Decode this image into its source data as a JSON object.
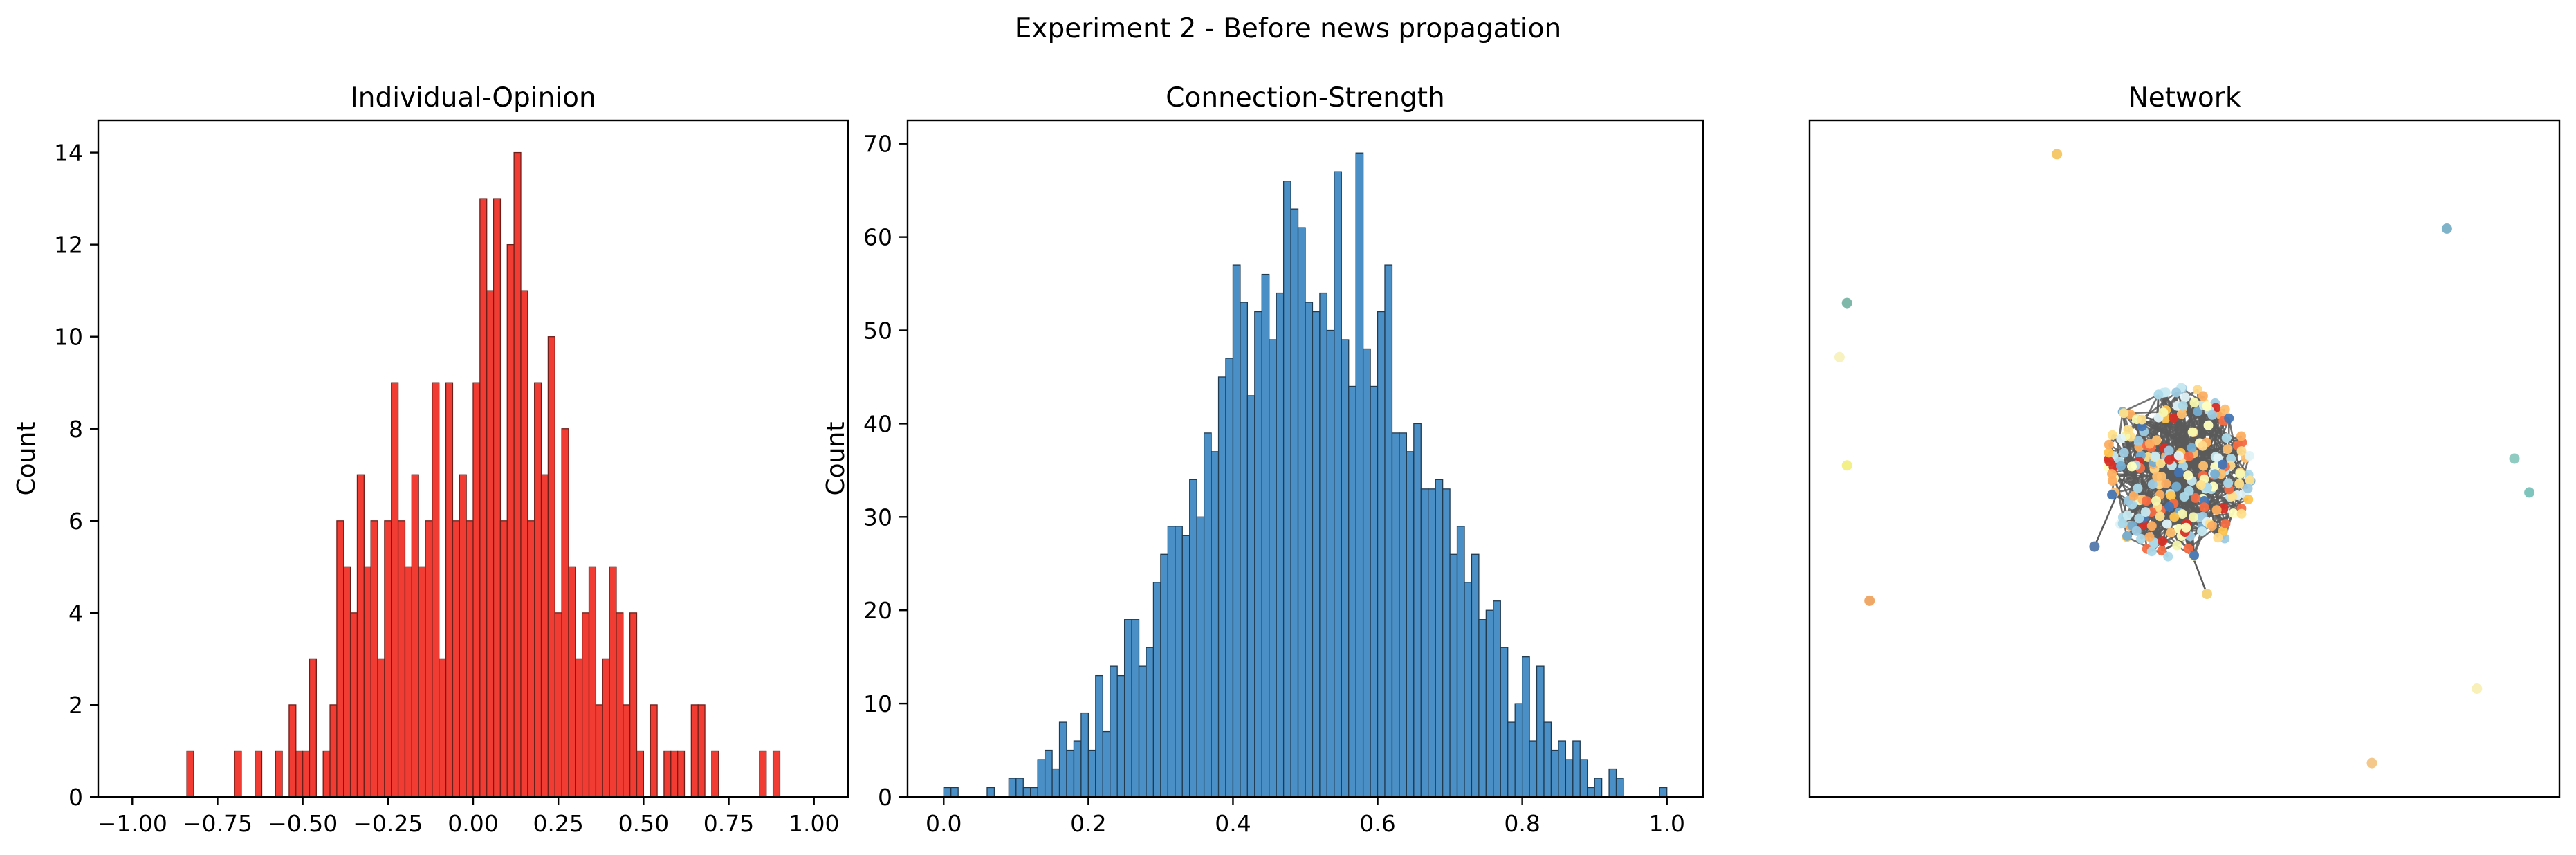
{
  "suptitle": "Experiment 2 - Before news propagation",
  "chart_data": [
    {
      "type": "bar",
      "title": "Individual-Opinion",
      "xlabel": "",
      "ylabel": "Count",
      "xlim": [
        -1.1,
        1.1
      ],
      "ylim": [
        0,
        14.7
      ],
      "bin_width": 0.02,
      "bar_color": "#f03c32",
      "edge_color": "#6e1e19",
      "xticks": [
        -1.0,
        -0.75,
        -0.5,
        -0.25,
        0.0,
        0.25,
        0.5,
        0.75,
        1.0
      ],
      "xtick_labels": [
        "−1.00",
        "−0.75",
        "−0.50",
        "−0.25",
        "0.00",
        "0.25",
        "0.50",
        "0.75",
        "1.00"
      ],
      "yticks": [
        0,
        2,
        4,
        6,
        8,
        10,
        12,
        14
      ],
      "ytick_labels": [
        "0",
        "2",
        "4",
        "6",
        "8",
        "10",
        "12",
        "14"
      ],
      "bars": [
        {
          "x": -0.84,
          "y": 1
        },
        {
          "x": -0.7,
          "y": 1
        },
        {
          "x": -0.64,
          "y": 1
        },
        {
          "x": -0.58,
          "y": 1
        },
        {
          "x": -0.54,
          "y": 2
        },
        {
          "x": -0.52,
          "y": 1
        },
        {
          "x": -0.5,
          "y": 1
        },
        {
          "x": -0.48,
          "y": 3
        },
        {
          "x": -0.44,
          "y": 1
        },
        {
          "x": -0.42,
          "y": 2
        },
        {
          "x": -0.4,
          "y": 6
        },
        {
          "x": -0.38,
          "y": 5
        },
        {
          "x": -0.36,
          "y": 4
        },
        {
          "x": -0.34,
          "y": 7
        },
        {
          "x": -0.32,
          "y": 5
        },
        {
          "x": -0.3,
          "y": 6
        },
        {
          "x": -0.28,
          "y": 3
        },
        {
          "x": -0.26,
          "y": 6
        },
        {
          "x": -0.24,
          "y": 9
        },
        {
          "x": -0.22,
          "y": 6
        },
        {
          "x": -0.2,
          "y": 5
        },
        {
          "x": -0.18,
          "y": 7
        },
        {
          "x": -0.16,
          "y": 5
        },
        {
          "x": -0.14,
          "y": 6
        },
        {
          "x": -0.12,
          "y": 9
        },
        {
          "x": -0.1,
          "y": 3
        },
        {
          "x": -0.08,
          "y": 9
        },
        {
          "x": -0.06,
          "y": 6
        },
        {
          "x": -0.04,
          "y": 7
        },
        {
          "x": -0.02,
          "y": 6
        },
        {
          "x": 0.0,
          "y": 9
        },
        {
          "x": 0.02,
          "y": 13
        },
        {
          "x": 0.04,
          "y": 11
        },
        {
          "x": 0.06,
          "y": 13
        },
        {
          "x": 0.08,
          "y": 6
        },
        {
          "x": 0.1,
          "y": 12
        },
        {
          "x": 0.12,
          "y": 14
        },
        {
          "x": 0.14,
          "y": 11
        },
        {
          "x": 0.16,
          "y": 6
        },
        {
          "x": 0.18,
          "y": 9
        },
        {
          "x": 0.2,
          "y": 7
        },
        {
          "x": 0.22,
          "y": 10
        },
        {
          "x": 0.24,
          "y": 4
        },
        {
          "x": 0.26,
          "y": 8
        },
        {
          "x": 0.28,
          "y": 5
        },
        {
          "x": 0.3,
          "y": 3
        },
        {
          "x": 0.32,
          "y": 4
        },
        {
          "x": 0.34,
          "y": 5
        },
        {
          "x": 0.36,
          "y": 2
        },
        {
          "x": 0.38,
          "y": 3
        },
        {
          "x": 0.4,
          "y": 5
        },
        {
          "x": 0.42,
          "y": 4
        },
        {
          "x": 0.44,
          "y": 2
        },
        {
          "x": 0.46,
          "y": 4
        },
        {
          "x": 0.48,
          "y": 1
        },
        {
          "x": 0.52,
          "y": 2
        },
        {
          "x": 0.56,
          "y": 1
        },
        {
          "x": 0.58,
          "y": 1
        },
        {
          "x": 0.6,
          "y": 1
        },
        {
          "x": 0.64,
          "y": 2
        },
        {
          "x": 0.66,
          "y": 2
        },
        {
          "x": 0.7,
          "y": 1
        },
        {
          "x": 0.84,
          "y": 1
        },
        {
          "x": 0.88,
          "y": 1
        }
      ]
    },
    {
      "type": "bar",
      "title": "Connection-Strength",
      "xlabel": "",
      "ylabel": "Count",
      "xlim": [
        -0.05,
        1.05
      ],
      "ylim": [
        0,
        72.5
      ],
      "bin_width": 0.01,
      "bar_color": "#4a8fc5",
      "edge_color": "#203a50",
      "xticks": [
        0.0,
        0.2,
        0.4,
        0.6,
        0.8,
        1.0
      ],
      "xtick_labels": [
        "0.0",
        "0.2",
        "0.4",
        "0.6",
        "0.8",
        "1.0"
      ],
      "yticks": [
        0,
        10,
        20,
        30,
        40,
        50,
        60,
        70
      ],
      "ytick_labels": [
        "0",
        "10",
        "20",
        "30",
        "40",
        "50",
        "60",
        "70"
      ],
      "bars": [
        {
          "x": 0.0,
          "y": 1
        },
        {
          "x": 0.01,
          "y": 1
        },
        {
          "x": 0.06,
          "y": 1
        },
        {
          "x": 0.09,
          "y": 2
        },
        {
          "x": 0.1,
          "y": 2
        },
        {
          "x": 0.11,
          "y": 1
        },
        {
          "x": 0.12,
          "y": 1
        },
        {
          "x": 0.13,
          "y": 4
        },
        {
          "x": 0.14,
          "y": 5
        },
        {
          "x": 0.15,
          "y": 3
        },
        {
          "x": 0.16,
          "y": 8
        },
        {
          "x": 0.17,
          "y": 5
        },
        {
          "x": 0.18,
          "y": 6
        },
        {
          "x": 0.19,
          "y": 9
        },
        {
          "x": 0.2,
          "y": 5
        },
        {
          "x": 0.21,
          "y": 13
        },
        {
          "x": 0.22,
          "y": 7
        },
        {
          "x": 0.23,
          "y": 14
        },
        {
          "x": 0.24,
          "y": 13
        },
        {
          "x": 0.25,
          "y": 19
        },
        {
          "x": 0.26,
          "y": 19
        },
        {
          "x": 0.27,
          "y": 14
        },
        {
          "x": 0.28,
          "y": 16
        },
        {
          "x": 0.29,
          "y": 23
        },
        {
          "x": 0.3,
          "y": 26
        },
        {
          "x": 0.31,
          "y": 29
        },
        {
          "x": 0.32,
          "y": 29
        },
        {
          "x": 0.33,
          "y": 28
        },
        {
          "x": 0.34,
          "y": 34
        },
        {
          "x": 0.35,
          "y": 30
        },
        {
          "x": 0.36,
          "y": 39
        },
        {
          "x": 0.37,
          "y": 37
        },
        {
          "x": 0.38,
          "y": 45
        },
        {
          "x": 0.39,
          "y": 47
        },
        {
          "x": 0.4,
          "y": 57
        },
        {
          "x": 0.41,
          "y": 53
        },
        {
          "x": 0.42,
          "y": 43
        },
        {
          "x": 0.43,
          "y": 52
        },
        {
          "x": 0.44,
          "y": 56
        },
        {
          "x": 0.45,
          "y": 49
        },
        {
          "x": 0.46,
          "y": 54
        },
        {
          "x": 0.47,
          "y": 66
        },
        {
          "x": 0.48,
          "y": 63
        },
        {
          "x": 0.49,
          "y": 61
        },
        {
          "x": 0.5,
          "y": 53
        },
        {
          "x": 0.51,
          "y": 52
        },
        {
          "x": 0.52,
          "y": 54
        },
        {
          "x": 0.53,
          "y": 50
        },
        {
          "x": 0.54,
          "y": 67
        },
        {
          "x": 0.55,
          "y": 49
        },
        {
          "x": 0.56,
          "y": 44
        },
        {
          "x": 0.57,
          "y": 69
        },
        {
          "x": 0.58,
          "y": 48
        },
        {
          "x": 0.59,
          "y": 44
        },
        {
          "x": 0.6,
          "y": 52
        },
        {
          "x": 0.61,
          "y": 57
        },
        {
          "x": 0.62,
          "y": 39
        },
        {
          "x": 0.63,
          "y": 39
        },
        {
          "x": 0.64,
          "y": 37
        },
        {
          "x": 0.65,
          "y": 40
        },
        {
          "x": 0.66,
          "y": 33
        },
        {
          "x": 0.67,
          "y": 33
        },
        {
          "x": 0.68,
          "y": 34
        },
        {
          "x": 0.69,
          "y": 33
        },
        {
          "x": 0.7,
          "y": 26
        },
        {
          "x": 0.71,
          "y": 29
        },
        {
          "x": 0.72,
          "y": 23
        },
        {
          "x": 0.73,
          "y": 26
        },
        {
          "x": 0.74,
          "y": 19
        },
        {
          "x": 0.75,
          "y": 20
        },
        {
          "x": 0.76,
          "y": 21
        },
        {
          "x": 0.77,
          "y": 16
        },
        {
          "x": 0.78,
          "y": 8
        },
        {
          "x": 0.79,
          "y": 10
        },
        {
          "x": 0.8,
          "y": 15
        },
        {
          "x": 0.81,
          "y": 6
        },
        {
          "x": 0.82,
          "y": 14
        },
        {
          "x": 0.83,
          "y": 8
        },
        {
          "x": 0.84,
          "y": 5
        },
        {
          "x": 0.85,
          "y": 6
        },
        {
          "x": 0.86,
          "y": 4
        },
        {
          "x": 0.87,
          "y": 6
        },
        {
          "x": 0.88,
          "y": 4
        },
        {
          "x": 0.89,
          "y": 1
        },
        {
          "x": 0.9,
          "y": 2
        },
        {
          "x": 0.92,
          "y": 3
        },
        {
          "x": 0.93,
          "y": 2
        },
        {
          "x": 0.99,
          "y": 1
        }
      ]
    },
    {
      "type": "scatter",
      "title": "Network",
      "xlabel": "",
      "ylabel": "",
      "xlim": [
        0,
        100
      ],
      "ylim": [
        0,
        100
      ],
      "grid": false,
      "edge_color": "#5a5a5a",
      "cluster": {
        "center": [
          49,
          48
        ],
        "radius": [
          10,
          13
        ],
        "node_count": 230,
        "seed": 7
      },
      "node_colors": [
        "#fee08b",
        "#fdae61",
        "#abd9e9",
        "#e0f3f8",
        "#ffffbf",
        "#d73027",
        "#f46d43",
        "#74add1",
        "#fec44f",
        "#9ecae1",
        "#f7f7b0",
        "#ffd98a",
        "#c7e9f1",
        "#fdbf6f",
        "#4575b4"
      ],
      "isolated_nodes": [
        {
          "x": 33,
          "y": 95,
          "color": "#f5c86a"
        },
        {
          "x": 85,
          "y": 84,
          "color": "#7fb3c9"
        },
        {
          "x": 5,
          "y": 73,
          "color": "#7fb8a8"
        },
        {
          "x": 4,
          "y": 65,
          "color": "#f7f2c0"
        },
        {
          "x": 5,
          "y": 49,
          "color": "#f3f08a"
        },
        {
          "x": 94,
          "y": 50,
          "color": "#8fcbc0"
        },
        {
          "x": 96,
          "y": 45,
          "color": "#7fc4bd"
        },
        {
          "x": 8,
          "y": 29,
          "color": "#f0a868"
        },
        {
          "x": 89,
          "y": 16,
          "color": "#f8f0b8"
        },
        {
          "x": 75,
          "y": 5,
          "color": "#f3c88a"
        },
        {
          "x": 38,
          "y": 37,
          "color": "#5c7fb0"
        },
        {
          "x": 53,
          "y": 30,
          "color": "#f5d37a"
        }
      ]
    }
  ]
}
